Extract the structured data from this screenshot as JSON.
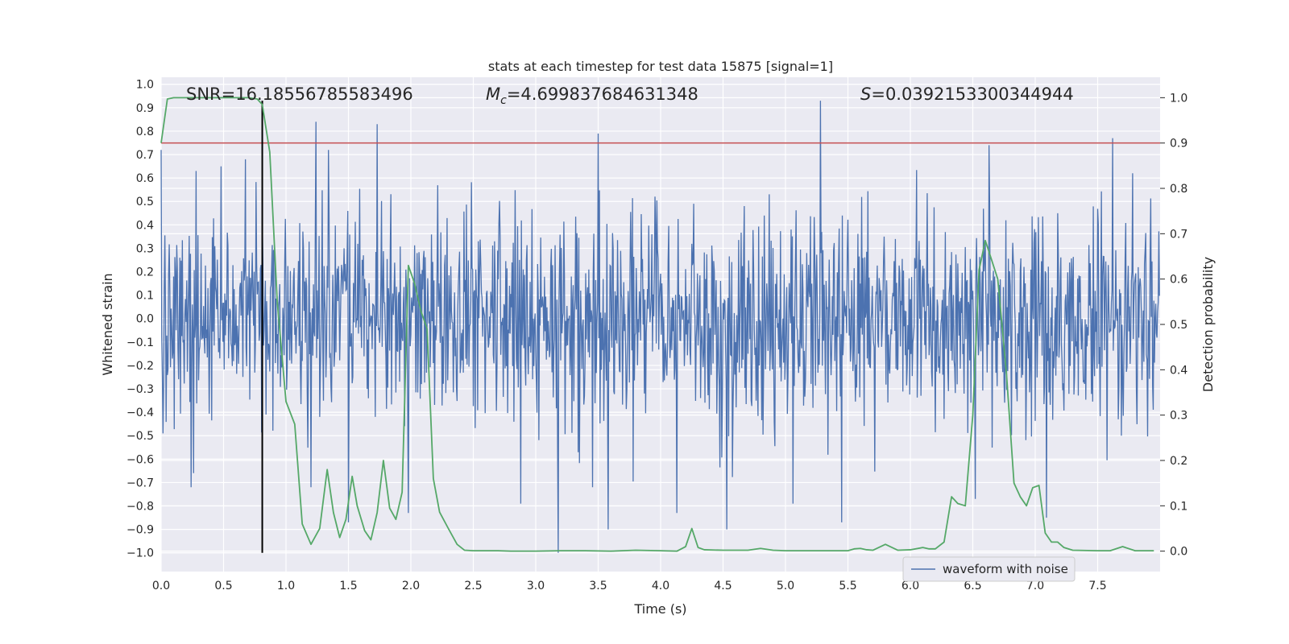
{
  "chart_data": {
    "type": "line",
    "title": "stats at each timestep for test data 15875 [signal=1]",
    "xlabel": "Time (s)",
    "ylabel_left": "Whitened strain",
    "ylabel_right": "Detection probability",
    "xlim": [
      0.0,
      8.0
    ],
    "ylim_left": [
      -1.08,
      1.03
    ],
    "ylim_right": [
      -0.045,
      1.045
    ],
    "x_ticks": [
      0.0,
      0.5,
      1.0,
      1.5,
      2.0,
      2.5,
      3.0,
      3.5,
      4.0,
      4.5,
      5.0,
      5.5,
      6.0,
      6.5,
      7.0,
      7.5
    ],
    "x_tick_labels": [
      "0.0",
      "0.5",
      "1.0",
      "1.5",
      "2.0",
      "2.5",
      "3.0",
      "3.5",
      "4.0",
      "4.5",
      "5.0",
      "5.5",
      "6.0",
      "6.5",
      "7.0",
      "7.5"
    ],
    "y_left_ticks": [
      1.0,
      0.9,
      0.8,
      0.7,
      0.6,
      0.5,
      0.4,
      0.3,
      0.2,
      0.1,
      0.0,
      -0.1,
      -0.2,
      -0.3,
      -0.4,
      -0.5,
      -0.6,
      -0.7,
      -0.8,
      -0.9,
      -1.0
    ],
    "y_left_tick_labels": [
      "1.0",
      "0.9",
      "0.8",
      "0.7",
      "0.6",
      "0.5",
      "0.4",
      "0.3",
      "0.2",
      "0.1",
      "0.0",
      "−0.1",
      "−0.2",
      "−0.3",
      "−0.4",
      "−0.5",
      "−0.6",
      "−0.7",
      "−0.8",
      "−0.9",
      "−1.0"
    ],
    "y_right_ticks": [
      1.0,
      0.9,
      0.8,
      0.7,
      0.6,
      0.5,
      0.4,
      0.3,
      0.2,
      0.1,
      0.0
    ],
    "y_right_tick_labels": [
      "1.0",
      "0.9",
      "0.8",
      "0.7",
      "0.6",
      "0.5",
      "0.4",
      "0.3",
      "0.2",
      "0.1",
      "0.0"
    ],
    "annotations": {
      "snr": "SNR=16.18556785583496",
      "mc_symbol": "M",
      "mc_subscript": "c",
      "mc_value": "=4.699837684631348",
      "s_symbol": "S",
      "s_value": "=0.0392153300344944"
    },
    "legend": {
      "label": "waveform with noise",
      "location": "lower-right"
    },
    "threshold": {
      "value": 0.9,
      "axis": "right",
      "color": "#c44e52"
    },
    "marker_line": {
      "x": 0.81,
      "y_from": -1.0,
      "y_to": 0.93,
      "axis": "left",
      "color": "#000000"
    },
    "waveform": {
      "name": "waveform with noise",
      "color": "#4c72b0",
      "duration_s": 8.0,
      "samples": 1600,
      "seed": 15875,
      "typical_amplitude": 0.45,
      "peaks": [
        {
          "x": 0.0,
          "y": 0.72
        },
        {
          "x": 0.28,
          "y": 0.63
        },
        {
          "x": 0.48,
          "y": 0.65
        },
        {
          "x": 1.24,
          "y": 0.84
        },
        {
          "x": 1.34,
          "y": 0.72
        },
        {
          "x": 1.73,
          "y": 0.83
        },
        {
          "x": 3.5,
          "y": 0.79
        },
        {
          "x": 5.28,
          "y": 0.93
        },
        {
          "x": 6.63,
          "y": 0.74
        },
        {
          "x": 7.62,
          "y": 0.77
        },
        {
          "x": 7.78,
          "y": 0.62
        }
      ],
      "troughs": [
        {
          "x": 0.26,
          "y": -0.66
        },
        {
          "x": 1.2,
          "y": -0.72
        },
        {
          "x": 1.5,
          "y": -0.87
        },
        {
          "x": 1.98,
          "y": -0.83
        },
        {
          "x": 2.88,
          "y": -0.79
        },
        {
          "x": 3.18,
          "y": -1.0
        },
        {
          "x": 3.58,
          "y": -0.9
        },
        {
          "x": 4.13,
          "y": -0.83
        },
        {
          "x": 4.53,
          "y": -0.9
        },
        {
          "x": 5.06,
          "y": -0.79
        },
        {
          "x": 5.45,
          "y": -0.87
        },
        {
          "x": 6.52,
          "y": -0.77
        },
        {
          "x": 7.09,
          "y": -0.85
        }
      ]
    },
    "detection_probability": {
      "color": "#55a868",
      "x": [
        0.0,
        0.05,
        0.1,
        0.2,
        0.3,
        0.4,
        0.5,
        0.6,
        0.7,
        0.77,
        0.81,
        0.87,
        0.93,
        1.0,
        1.07,
        1.13,
        1.2,
        1.27,
        1.33,
        1.38,
        1.43,
        1.48,
        1.53,
        1.57,
        1.63,
        1.68,
        1.73,
        1.78,
        1.83,
        1.88,
        1.93,
        1.98,
        2.03,
        2.08,
        2.13,
        2.18,
        2.23,
        2.3,
        2.37,
        2.43,
        2.5,
        2.56,
        2.7,
        2.8,
        3.0,
        3.2,
        3.4,
        3.6,
        3.8,
        4.0,
        4.13,
        4.2,
        4.25,
        4.3,
        4.35,
        4.5,
        4.7,
        4.8,
        4.9,
        5.0,
        5.3,
        5.5,
        5.55,
        5.6,
        5.65,
        5.7,
        5.8,
        5.9,
        6.0,
        6.1,
        6.15,
        6.2,
        6.27,
        6.33,
        6.38,
        6.44,
        6.5,
        6.55,
        6.6,
        6.63,
        6.7,
        6.77,
        6.83,
        6.88,
        6.93,
        6.98,
        7.03,
        7.08,
        7.13,
        7.18,
        7.23,
        7.3,
        7.5,
        7.6,
        7.7,
        7.8,
        7.95
      ],
      "y": [
        0.9,
        0.997,
        1.0,
        1.0,
        1.0,
        1.0,
        1.0,
        1.0,
        1.0,
        0.997,
        0.985,
        0.88,
        0.55,
        0.33,
        0.28,
        0.06,
        0.015,
        0.05,
        0.18,
        0.085,
        0.03,
        0.07,
        0.165,
        0.1,
        0.045,
        0.025,
        0.085,
        0.2,
        0.095,
        0.07,
        0.13,
        0.63,
        0.59,
        0.53,
        0.49,
        0.16,
        0.086,
        0.05,
        0.015,
        0.002,
        0.001,
        0.001,
        0.001,
        0.0,
        0.0,
        0.001,
        0.001,
        0.0,
        0.002,
        0.001,
        0.0,
        0.01,
        0.05,
        0.008,
        0.003,
        0.002,
        0.002,
        0.006,
        0.002,
        0.001,
        0.001,
        0.001,
        0.005,
        0.006,
        0.003,
        0.002,
        0.015,
        0.002,
        0.003,
        0.008,
        0.005,
        0.005,
        0.02,
        0.12,
        0.105,
        0.1,
        0.3,
        0.62,
        0.685,
        0.66,
        0.6,
        0.39,
        0.15,
        0.12,
        0.1,
        0.14,
        0.145,
        0.04,
        0.02,
        0.02,
        0.008,
        0.002,
        0.001,
        0.001,
        0.01,
        0.001,
        0.001
      ]
    }
  }
}
